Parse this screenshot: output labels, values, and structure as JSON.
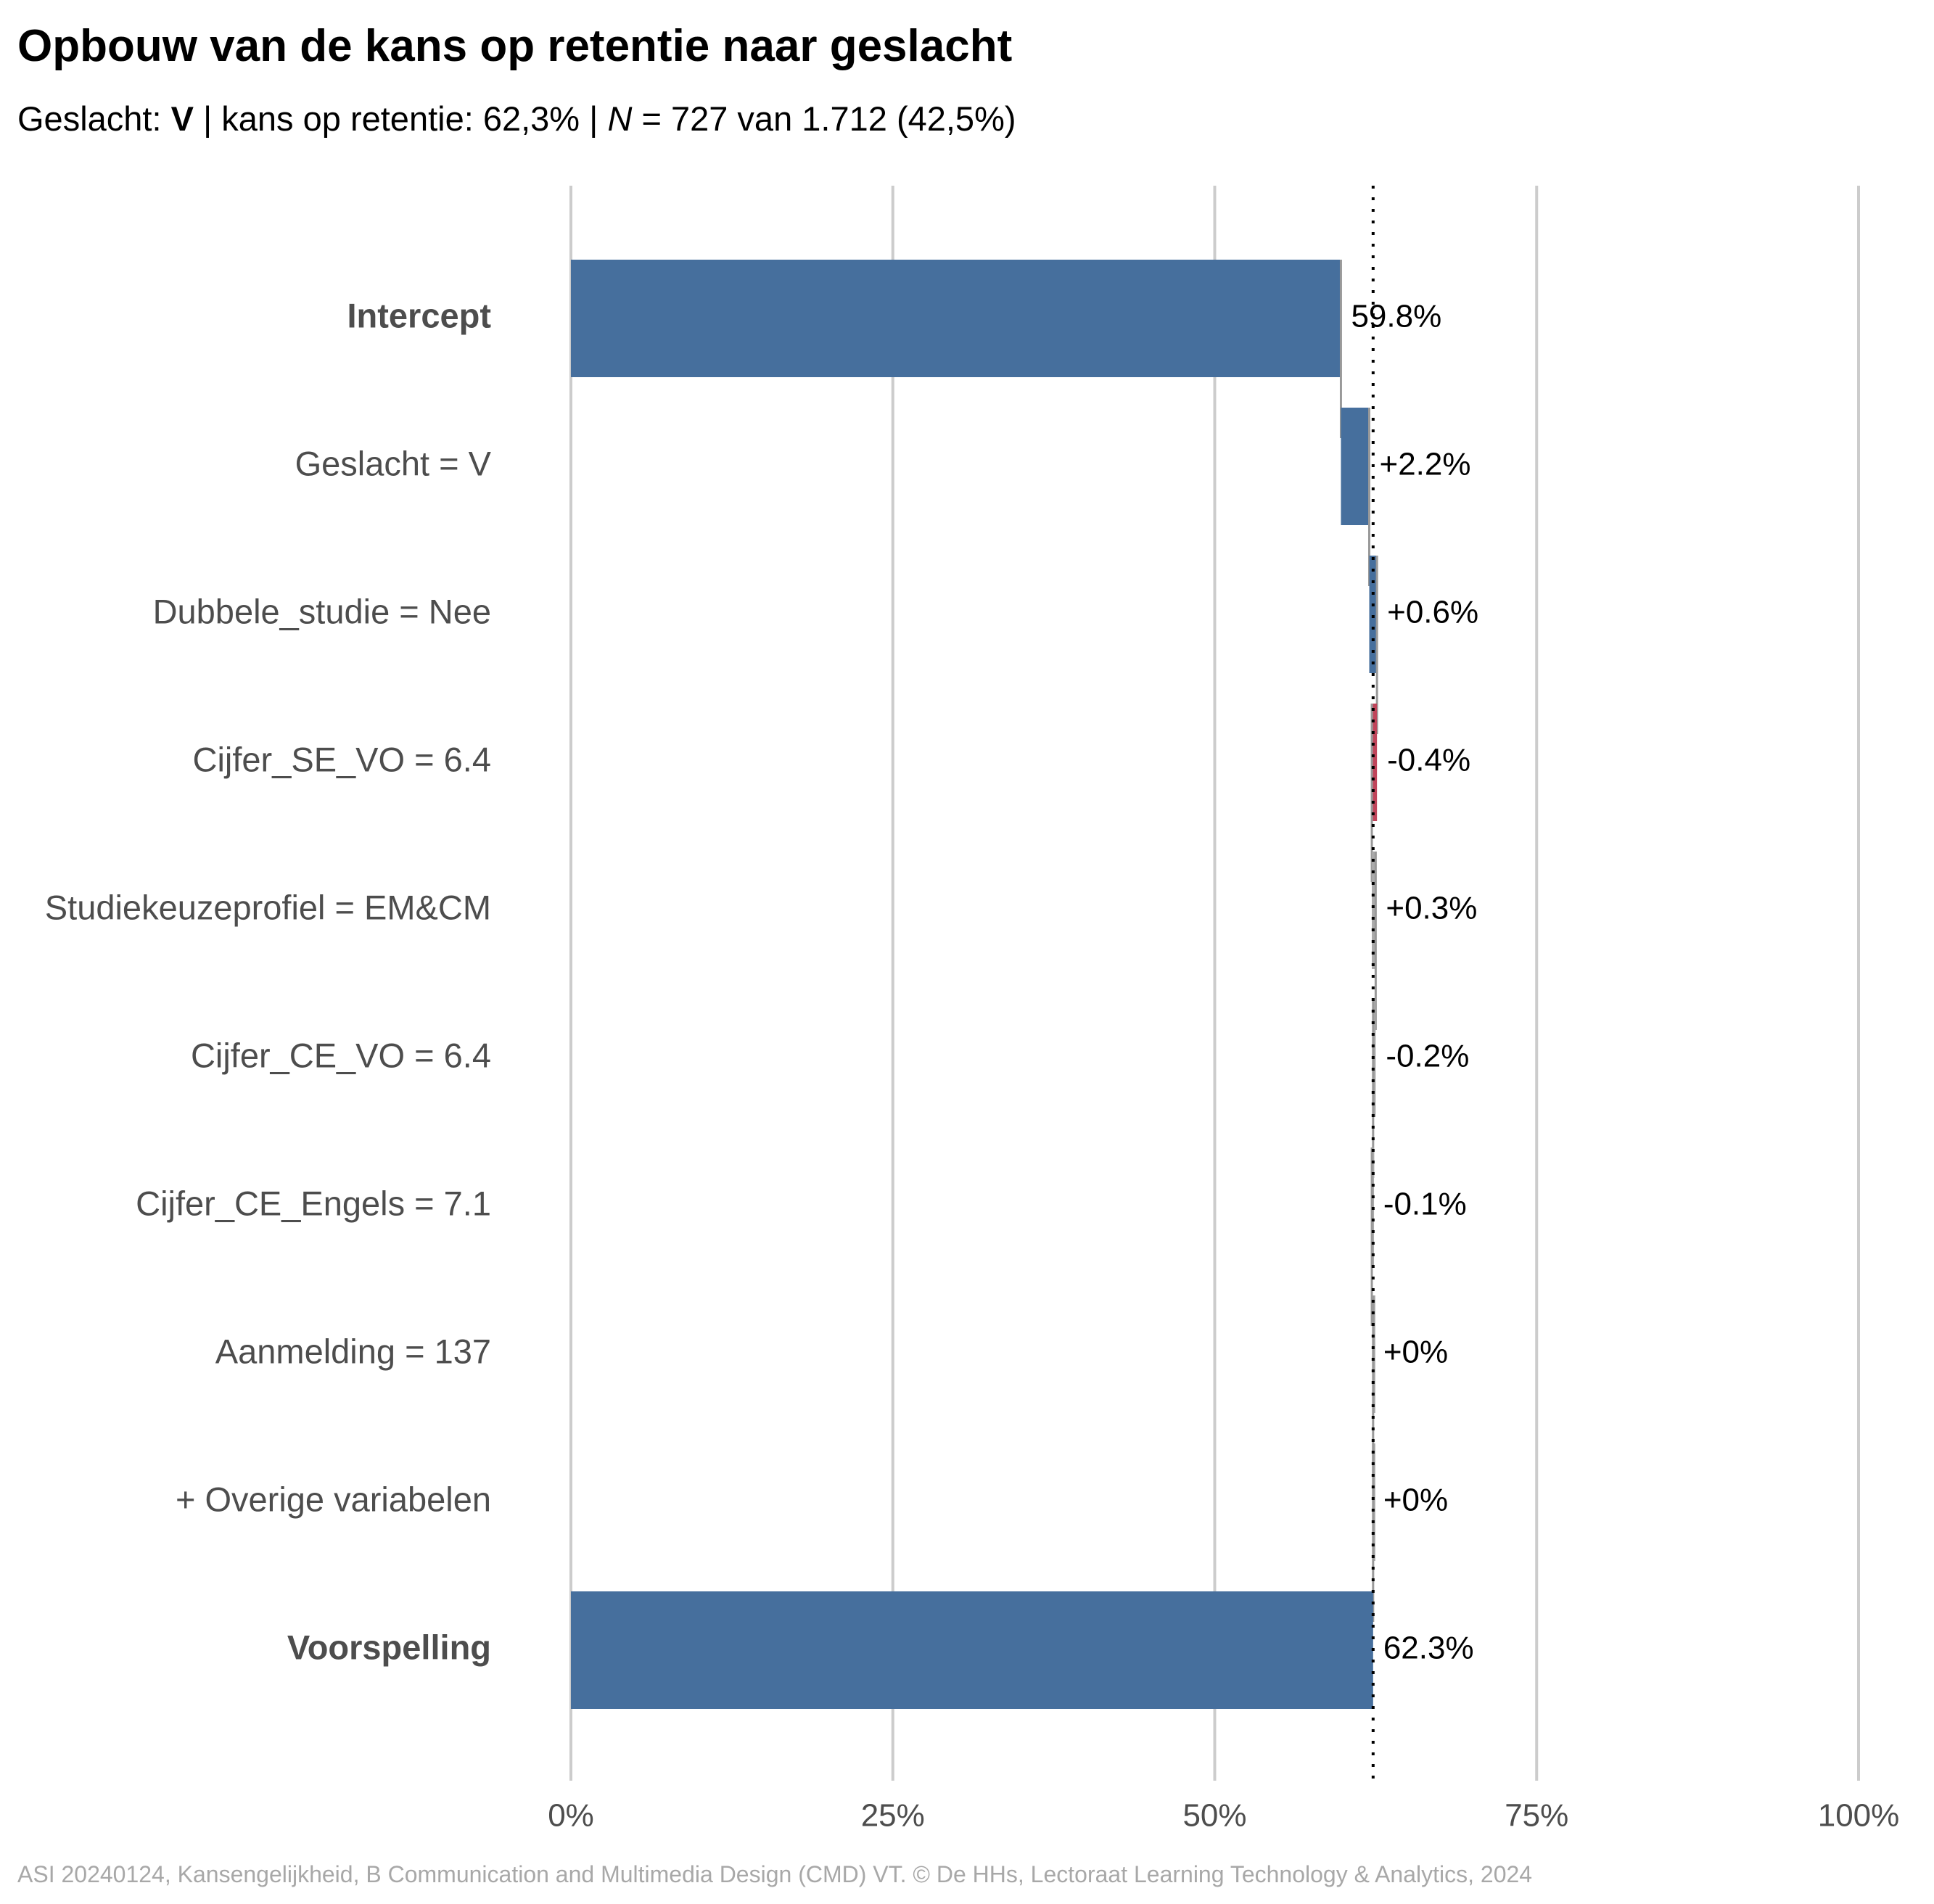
{
  "chart_data": {
    "type": "bar",
    "title": "Opbouw van de kans op retentie naar geslacht",
    "subtitle": {
      "prefix": "Geslacht: ",
      "group": "V",
      "middle": " | kans op retentie: 62,3% | ",
      "n_symbol": "N",
      "n_text": " = 727 van 1.712 (42,5%)"
    },
    "caption": "ASI 20240124, Kansengelijkheid, B Communication and Multimedia Design (CMD) VT. © De HHs, Lectoraat Learning Technology & Analytics, 2024",
    "xlim": [
      0,
      100
    ],
    "ticks": [
      {
        "value": 0,
        "label": "0%"
      },
      {
        "value": 25,
        "label": "25%"
      },
      {
        "value": 50,
        "label": "50%"
      },
      {
        "value": 75,
        "label": "75%"
      },
      {
        "value": 100,
        "label": "100%"
      }
    ],
    "reference_line": 62.3,
    "grid": true,
    "legend": "none",
    "colors": {
      "total": "#466f9d",
      "positive": "#466f9d",
      "negative": "#c0445a",
      "negligible": "#aaaaaa",
      "grid": "#cccccc",
      "connector": "#999999"
    },
    "rows": [
      {
        "label": "Intercept",
        "value": 59.8,
        "start": 0,
        "end": 59.8,
        "kind": "total",
        "value_label": "59.8%",
        "bold": true
      },
      {
        "label": "Geslacht = V",
        "value": 2.2,
        "start": 59.8,
        "end": 62.0,
        "kind": "positive",
        "value_label": "+2.2%",
        "bold": false
      },
      {
        "label": "Dubbele_studie = Nee",
        "value": 0.6,
        "start": 62.0,
        "end": 62.6,
        "kind": "positive",
        "value_label": "+0.6%",
        "bold": false
      },
      {
        "label": "Cijfer_SE_VO = 6.4",
        "value": -0.4,
        "start": 62.6,
        "end": 62.2,
        "kind": "negative",
        "value_label": "-0.4%",
        "bold": false
      },
      {
        "label": "Studiekeuzeprofiel = EM&CM",
        "value": 0.3,
        "start": 62.2,
        "end": 62.5,
        "kind": "negligible",
        "value_label": "+0.3%",
        "bold": false
      },
      {
        "label": "Cijfer_CE_VO = 6.4",
        "value": -0.2,
        "start": 62.5,
        "end": 62.3,
        "kind": "negligible",
        "value_label": "-0.2%",
        "bold": false
      },
      {
        "label": "Cijfer_CE_Engels = 7.1",
        "value": -0.1,
        "start": 62.3,
        "end": 62.2,
        "kind": "negligible",
        "value_label": "-0.1%",
        "bold": false
      },
      {
        "label": "Aanmelding = 137",
        "value": 0,
        "start": 62.3,
        "end": 62.3,
        "kind": "negligible",
        "value_label": "+0%",
        "bold": false
      },
      {
        "label": "+ Overige variabelen",
        "value": 0,
        "start": 62.3,
        "end": 62.3,
        "kind": "negligible",
        "value_label": "+0%",
        "bold": false
      },
      {
        "label": "Voorspelling",
        "value": 62.3,
        "start": 0,
        "end": 62.3,
        "kind": "total",
        "value_label": "62.3%",
        "bold": true
      }
    ]
  }
}
